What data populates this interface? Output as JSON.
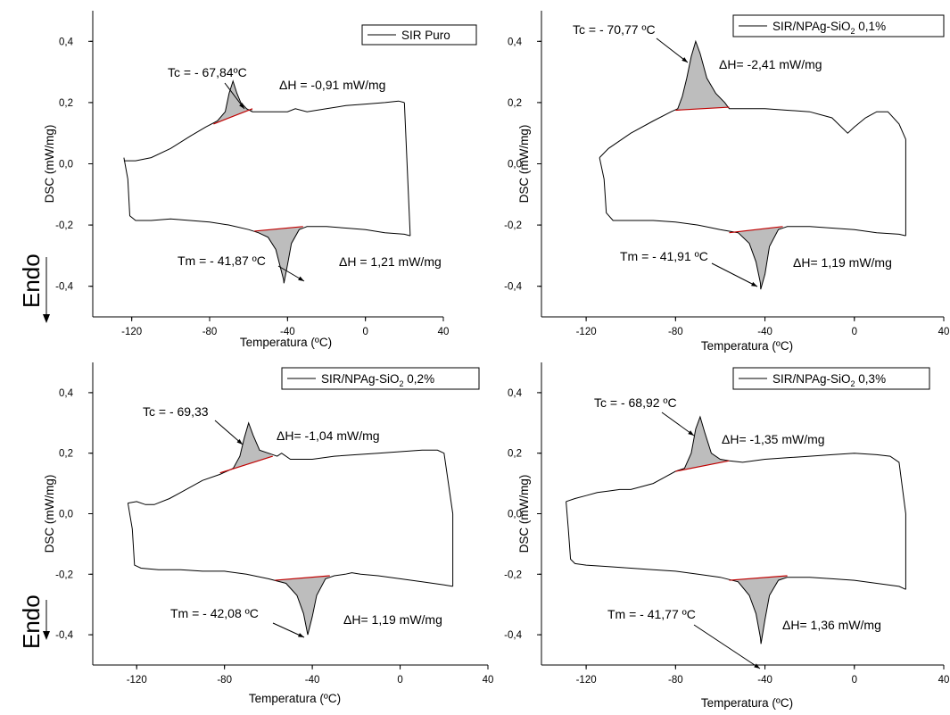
{
  "page": {
    "side_label": "Endo"
  },
  "chart_data": [
    {
      "type": "line",
      "legend": "SIR Puro",
      "legend_sub": "",
      "legend_tail": "",
      "xlabel": "Temperatura (ºC)",
      "ylabel": "DSC (mW/mg)",
      "xlim": [
        -140,
        40
      ],
      "ylim": [
        -0.5,
        0.5
      ],
      "xticks": [
        -120,
        -80,
        -40,
        0,
        40
      ],
      "xtick_labels": [
        "-120",
        "-80",
        "-40",
        "0",
        "40"
      ],
      "yticks": [
        -0.4,
        -0.2,
        0.0,
        0.2,
        0.4
      ],
      "ytick_labels": [
        "-0,4",
        "-0,2",
        "0,0",
        "0,2",
        "0,4"
      ],
      "annotations": {
        "tc": "Tc = - 67,84ºC",
        "dh_c": "ΔH = -0,91 mW/mg",
        "tm": "Tm = - 41,87 ºC",
        "dh_m": "ΔH = 1,21 mW/mg"
      },
      "cooling": {
        "x": [
          -124,
          -118,
          -110,
          -100,
          -90,
          -82,
          -76,
          -72,
          -70,
          -68,
          -66,
          -64,
          -61,
          -58,
          -50,
          -40,
          -36,
          -30,
          -20,
          -10,
          0,
          10,
          17,
          20
        ],
        "y": [
          0.01,
          0.01,
          0.02,
          0.05,
          0.09,
          0.12,
          0.14,
          0.17,
          0.23,
          0.27,
          0.23,
          0.2,
          0.18,
          0.17,
          0.17,
          0.17,
          0.18,
          0.17,
          0.18,
          0.19,
          0.195,
          0.2,
          0.205,
          0.2
        ]
      },
      "heating": {
        "x": [
          -124,
          -122,
          -121,
          -118,
          -110,
          -100,
          -90,
          -80,
          -70,
          -60,
          -55,
          -50,
          -46,
          -44,
          -42,
          -41.87,
          -40,
          -38,
          -34,
          -30,
          -20,
          -10,
          0,
          10,
          20,
          23
        ],
        "y": [
          0.02,
          -0.05,
          -0.17,
          -0.185,
          -0.185,
          -0.18,
          -0.185,
          -0.19,
          -0.2,
          -0.215,
          -0.225,
          -0.24,
          -0.28,
          -0.33,
          -0.38,
          -0.39,
          -0.33,
          -0.26,
          -0.215,
          -0.205,
          -0.205,
          -0.21,
          -0.215,
          -0.225,
          -0.23,
          -0.235
        ]
      },
      "crystallization_baseline": {
        "x": [
          -78,
          -58
        ],
        "y": [
          0.13,
          0.18
        ]
      },
      "melting_baseline": {
        "x": [
          -57,
          -32
        ],
        "y": [
          -0.22,
          -0.205
        ]
      }
    },
    {
      "type": "line",
      "legend": "SIR/NPAg-SiO",
      "legend_sub": "2",
      "legend_tail": " 0,1%",
      "xlabel": "Temperatura (ºC)",
      "ylabel": "DSC (mW/mg)",
      "xlim": [
        -140,
        40
      ],
      "ylim": [
        -0.5,
        0.5
      ],
      "xticks": [
        -120,
        -80,
        -40,
        0,
        40
      ],
      "xtick_labels": [
        "-120",
        "-80",
        "-40",
        "0",
        "40"
      ],
      "yticks": [
        -0.4,
        -0.2,
        0.0,
        0.2,
        0.4
      ],
      "ytick_labels": [
        "-0,4",
        "-0,2",
        "0,0",
        "0,2",
        "0,4"
      ],
      "annotations": {
        "tc": "Tc = - 70,77 ºC",
        "dh_c": "ΔH= -2,41 mW/mg",
        "tm": "Tm = - 41,91 ºC",
        "dh_m": "ΔH= 1,19 mW/mg"
      },
      "cooling": {
        "x": [
          -114,
          -110,
          -100,
          -90,
          -82,
          -79,
          -77,
          -75,
          -73,
          -71,
          -69,
          -66,
          -62,
          -58,
          -56,
          -50,
          -40,
          -30,
          -20,
          -10,
          -3,
          0,
          5,
          10,
          15,
          20,
          23
        ],
        "y": [
          0.02,
          0.05,
          0.1,
          0.14,
          0.17,
          0.18,
          0.22,
          0.28,
          0.35,
          0.4,
          0.36,
          0.28,
          0.23,
          0.2,
          0.18,
          0.18,
          0.18,
          0.175,
          0.17,
          0.15,
          0.1,
          0.12,
          0.15,
          0.17,
          0.17,
          0.13,
          0.08
        ]
      },
      "heating": {
        "x": [
          -114,
          -112,
          -111,
          -108,
          -100,
          -90,
          -80,
          -70,
          -60,
          -52,
          -47,
          -44,
          -42,
          -41.91,
          -40,
          -38,
          -34,
          -30,
          -20,
          -10,
          0,
          10,
          20,
          23
        ],
        "y": [
          0.02,
          -0.05,
          -0.16,
          -0.185,
          -0.185,
          -0.185,
          -0.19,
          -0.2,
          -0.215,
          -0.225,
          -0.26,
          -0.32,
          -0.39,
          -0.41,
          -0.36,
          -0.27,
          -0.215,
          -0.205,
          -0.205,
          -0.21,
          -0.215,
          -0.225,
          -0.23,
          -0.235
        ]
      },
      "crystallization_baseline": {
        "x": [
          -80,
          -56
        ],
        "y": [
          0.175,
          0.185
        ]
      },
      "melting_baseline": {
        "x": [
          -56,
          -32
        ],
        "y": [
          -0.225,
          -0.205
        ]
      }
    },
    {
      "type": "line",
      "legend": "SIR/NPAg-SiO",
      "legend_sub": "2",
      "legend_tail": " 0,2%",
      "xlabel": "Temperatura (ºC)",
      "ylabel": "DSC (mW/mg)",
      "xlim": [
        -140,
        40
      ],
      "ylim": [
        -0.5,
        0.5
      ],
      "xticks": [
        -120,
        -80,
        -40,
        0,
        40
      ],
      "xtick_labels": [
        "-120",
        "-80",
        "-40",
        "0",
        "40"
      ],
      "yticks": [
        -0.4,
        -0.2,
        0.0,
        0.2,
        0.4
      ],
      "ytick_labels": [
        "-0,4",
        "-0,2",
        "0,0",
        "0,2",
        "0,4"
      ],
      "annotations": {
        "tc": "Tc = - 69,33",
        "dh_c": "ΔH= -1,04 mW/mg",
        "tm": "Tm = - 42,08 ºC",
        "dh_m": "ΔH= 1,19 mW/mg"
      },
      "cooling": {
        "x": [
          -124,
          -120,
          -116,
          -112,
          -105,
          -100,
          -90,
          -82,
          -76,
          -73,
          -71,
          -69,
          -67,
          -64,
          -60,
          -56,
          -54,
          -50,
          -40,
          -30,
          -20,
          -10,
          0,
          10,
          17,
          20,
          24
        ],
        "y": [
          0.035,
          0.04,
          0.03,
          0.03,
          0.05,
          0.07,
          0.11,
          0.13,
          0.15,
          0.19,
          0.25,
          0.3,
          0.26,
          0.21,
          0.2,
          0.19,
          0.2,
          0.18,
          0.18,
          0.19,
          0.195,
          0.2,
          0.205,
          0.21,
          0.21,
          0.2,
          0.0
        ]
      },
      "heating": {
        "x": [
          -124,
          -122,
          -121,
          -118,
          -110,
          -100,
          -90,
          -80,
          -70,
          -60,
          -52,
          -47,
          -44,
          -42.08,
          -40,
          -38,
          -34,
          -30,
          -25,
          -22,
          -18,
          -10,
          0,
          10,
          20,
          24
        ],
        "y": [
          0.035,
          -0.05,
          -0.17,
          -0.18,
          -0.185,
          -0.185,
          -0.19,
          -0.19,
          -0.2,
          -0.215,
          -0.23,
          -0.27,
          -0.33,
          -0.4,
          -0.34,
          -0.27,
          -0.215,
          -0.205,
          -0.2,
          -0.195,
          -0.2,
          -0.205,
          -0.215,
          -0.225,
          -0.235,
          -0.24
        ]
      },
      "crystallization_baseline": {
        "x": [
          -82,
          -58
        ],
        "y": [
          0.135,
          0.19
        ]
      },
      "melting_baseline": {
        "x": [
          -57,
          -32
        ],
        "y": [
          -0.22,
          -0.205
        ]
      }
    },
    {
      "type": "line",
      "legend": "SIR/NPAg-SiO",
      "legend_sub": "2",
      "legend_tail": " 0,3%",
      "xlabel": "Temperatura (ºC)",
      "ylabel": "DSC (mW/mg)",
      "xlim": [
        -140,
        40
      ],
      "ylim": [
        -0.5,
        0.5
      ],
      "xticks": [
        -120,
        -80,
        -40,
        0,
        40
      ],
      "xtick_labels": [
        "-120",
        "-80",
        "-40",
        "0",
        "40"
      ],
      "yticks": [
        -0.4,
        -0.2,
        0.0,
        0.2,
        0.4
      ],
      "ytick_labels": [
        "-0,4",
        "-0,2",
        "0,0",
        "0,2",
        "0,4"
      ],
      "annotations": {
        "tc": "Tc = - 68,92 ºC",
        "dh_c": "ΔH= -1,35 mW/mg",
        "tm": "Tm = - 41,77 ºC",
        "dh_m": "ΔH= 1,36 mW/mg"
      },
      "cooling": {
        "x": [
          -129,
          -125,
          -120,
          -115,
          -110,
          -105,
          -100,
          -95,
          -90,
          -85,
          -80,
          -76,
          -73,
          -71,
          -69,
          -67,
          -64,
          -60,
          -56,
          -50,
          -40,
          -30,
          -20,
          -10,
          0,
          10,
          16,
          20,
          23
        ],
        "y": [
          0.04,
          0.05,
          0.06,
          0.07,
          0.075,
          0.08,
          0.08,
          0.09,
          0.1,
          0.12,
          0.14,
          0.15,
          0.2,
          0.28,
          0.32,
          0.27,
          0.2,
          0.18,
          0.175,
          0.17,
          0.18,
          0.185,
          0.19,
          0.195,
          0.2,
          0.195,
          0.19,
          0.17,
          0.0
        ]
      },
      "heating": {
        "x": [
          -129,
          -128,
          -127,
          -125,
          -120,
          -110,
          -100,
          -90,
          -80,
          -70,
          -60,
          -52,
          -47,
          -44,
          -42,
          -41.77,
          -40,
          -38,
          -34,
          -30,
          -20,
          -10,
          0,
          10,
          20,
          23
        ],
        "y": [
          0.04,
          -0.05,
          -0.15,
          -0.165,
          -0.17,
          -0.175,
          -0.18,
          -0.185,
          -0.19,
          -0.2,
          -0.21,
          -0.225,
          -0.27,
          -0.33,
          -0.41,
          -0.43,
          -0.35,
          -0.27,
          -0.22,
          -0.21,
          -0.21,
          -0.215,
          -0.22,
          -0.23,
          -0.24,
          -0.25
        ]
      },
      "crystallization_baseline": {
        "x": [
          -80,
          -56
        ],
        "y": [
          0.14,
          0.175
        ]
      },
      "melting_baseline": {
        "x": [
          -56,
          -30
        ],
        "y": [
          -0.22,
          -0.205
        ]
      }
    }
  ]
}
